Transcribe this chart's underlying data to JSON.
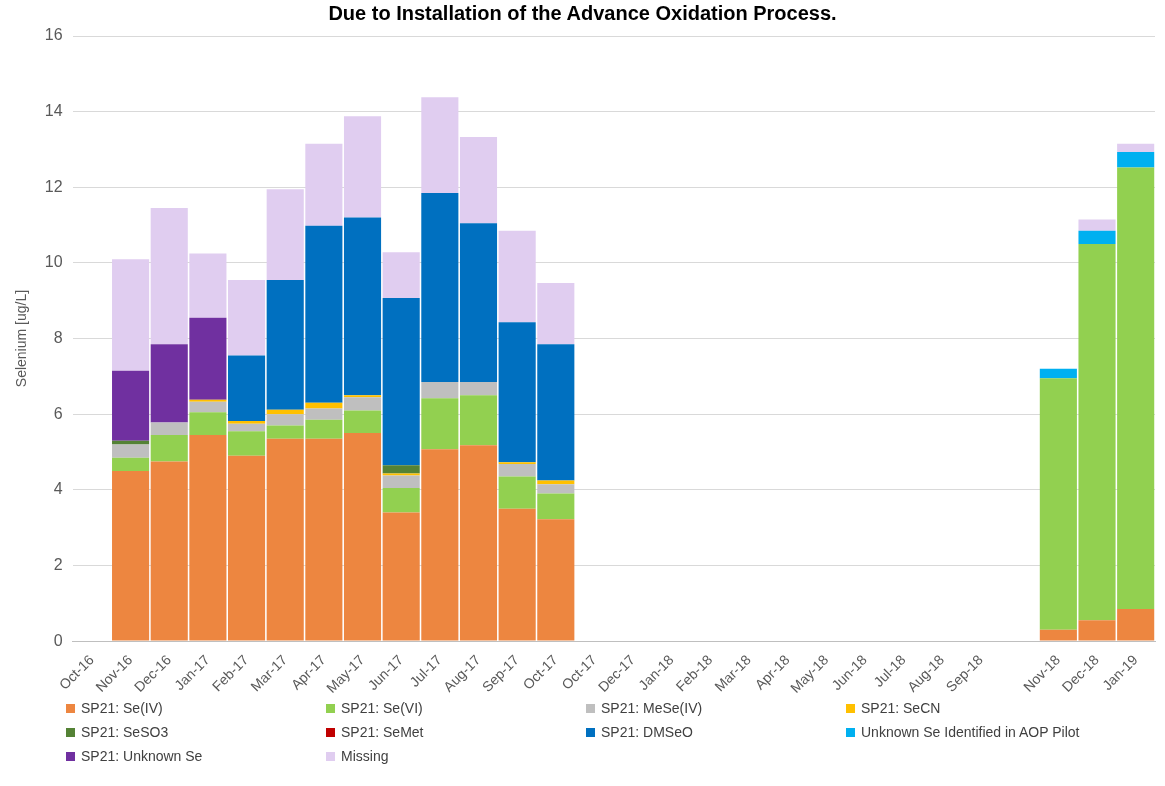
{
  "chart_data": {
    "type": "bar",
    "title": "Due to Installation of the Advance Oxidation Process.",
    "ylabel": "Selenium [ug/L]",
    "categories": [
      "Oct-16",
      "Nov-16",
      "Dec-16",
      "Jan-17",
      "Feb-17",
      "Mar-17",
      "Apr-17",
      "May-17",
      "Jun-17",
      "Jul-17",
      "Aug-17",
      "Sep-17",
      "Oct-17",
      "Oct-17",
      "Dec-17",
      "Jan-18",
      "Feb-18",
      "Mar-18",
      "Apr-18",
      "May-18",
      "Jun-18",
      "Jul-18",
      "Aug-18",
      "Sep-18",
      null,
      "Nov-18",
      "Dec-18",
      "Jan-19"
    ],
    "stacked": true,
    "ylim": [
      0,
      16
    ],
    "yticks": [
      0,
      2,
      4,
      6,
      8,
      10,
      12,
      14,
      16
    ],
    "grid": "y",
    "legend": "bottom",
    "series": [
      {
        "name": "SP21: Se(IV)",
        "color": "#ed8640",
        "values": [
          null,
          4.5,
          4.75,
          5.45,
          4.9,
          5.35,
          5.35,
          5.5,
          3.4,
          5.07,
          5.18,
          3.5,
          3.22,
          null,
          null,
          null,
          null,
          null,
          null,
          null,
          null,
          null,
          null,
          null,
          null,
          0.3,
          0.55,
          0.85
        ]
      },
      {
        "name": "SP21: Se(VI)",
        "color": "#92d050",
        "values": [
          null,
          0.35,
          0.7,
          0.6,
          0.65,
          0.35,
          0.5,
          0.6,
          0.65,
          1.35,
          1.32,
          0.85,
          0.68,
          null,
          null,
          null,
          null,
          null,
          null,
          null,
          null,
          null,
          null,
          null,
          null,
          6.65,
          9.95,
          11.67
        ]
      },
      {
        "name": "SP21: MeSe(IV)",
        "color": "#bfbfbf",
        "values": [
          null,
          0.35,
          0.33,
          0.28,
          0.2,
          0.3,
          0.3,
          0.35,
          0.33,
          0.43,
          0.35,
          0.33,
          0.25,
          null,
          null,
          null,
          null,
          null,
          null,
          null,
          null,
          null,
          null,
          null,
          null,
          null,
          null,
          null
        ]
      },
      {
        "name": "SP21: SeCN",
        "color": "#ffc000",
        "values": [
          null,
          null,
          null,
          0.05,
          0.07,
          0.12,
          0.15,
          0.05,
          0.05,
          null,
          null,
          0.05,
          0.1,
          null,
          null,
          null,
          null,
          null,
          null,
          null,
          null,
          null,
          null,
          null,
          null,
          null,
          null,
          null
        ]
      },
      {
        "name": "SP21: SeSO3",
        "color": "#548235",
        "values": [
          null,
          0.1,
          null,
          null,
          null,
          null,
          null,
          null,
          0.22,
          null,
          null,
          null,
          null,
          null,
          null,
          null,
          null,
          null,
          null,
          null,
          null,
          null,
          null,
          null,
          null,
          null,
          null,
          null
        ]
      },
      {
        "name": "SP21: SeMet",
        "color": "#c00000",
        "values": [
          null,
          null,
          null,
          null,
          null,
          null,
          null,
          null,
          null,
          null,
          null,
          null,
          null,
          null,
          null,
          null,
          null,
          null,
          null,
          null,
          null,
          null,
          null,
          null,
          null,
          null,
          null,
          null
        ]
      },
      {
        "name": "SP21: DMSeO",
        "color": "#0070c0",
        "values": [
          null,
          null,
          null,
          null,
          1.73,
          3.43,
          4.68,
          4.7,
          4.42,
          5.0,
          4.2,
          3.7,
          3.6,
          null,
          null,
          null,
          null,
          null,
          null,
          null,
          null,
          null,
          null,
          null,
          null,
          null,
          null,
          null
        ]
      },
      {
        "name": "Unknown Se Identified in AOP Pilot",
        "color": "#00b0f0",
        "values": [
          null,
          null,
          null,
          null,
          null,
          null,
          null,
          null,
          null,
          null,
          null,
          null,
          null,
          null,
          null,
          null,
          null,
          null,
          null,
          null,
          null,
          null,
          null,
          null,
          null,
          0.25,
          0.35,
          0.41
        ]
      },
      {
        "name": "SP21: Unknown Se",
        "color": "#7030a0",
        "values": [
          null,
          1.85,
          2.07,
          2.17,
          null,
          null,
          null,
          null,
          null,
          null,
          null,
          null,
          null,
          null,
          null,
          null,
          null,
          null,
          null,
          null,
          null,
          null,
          null,
          null,
          null,
          null,
          null,
          null
        ]
      },
      {
        "name": "Missing",
        "color": "#e0cdf0",
        "values": [
          null,
          2.95,
          3.6,
          1.7,
          2.0,
          2.4,
          2.17,
          2.68,
          1.21,
          2.53,
          2.28,
          2.42,
          1.62,
          null,
          null,
          null,
          null,
          null,
          null,
          null,
          null,
          null,
          null,
          null,
          null,
          null,
          0.3,
          0.22
        ]
      }
    ]
  }
}
